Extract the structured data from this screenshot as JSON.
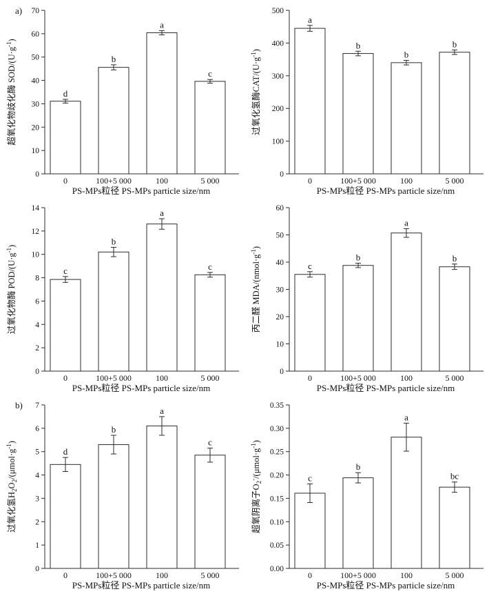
{
  "figure": {
    "background_color": "#ffffff",
    "axis_color": "#2a2a2a",
    "bar_fill": "#ffffff",
    "bar_stroke": "#2a2a2a",
    "panel_labels": {
      "a": "a)",
      "b": "b)"
    },
    "xlabel": "PS-MPs粒径 PS-MPs particle size/nm",
    "categories": [
      "0",
      "100+5 000",
      "100",
      "5 000"
    ]
  },
  "chart_data": [
    {
      "type": "bar",
      "panel": "a)",
      "title": "SOD",
      "ylabel": "超氧化物歧化酶 SOD/(U·g⁻¹)",
      "ylabel_rich": [
        {
          "t": "超氧化物歧化酶 SOD/(U·g"
        },
        {
          "t": "-1",
          "sup": true
        },
        {
          "t": ")"
        }
      ],
      "xlabel": "PS-MPs粒径 PS-MPs particle size/nm",
      "categories": [
        "0",
        "100+5 000",
        "100",
        "5 000"
      ],
      "values": [
        31.1,
        45.6,
        60.4,
        39.6
      ],
      "errors": [
        0.8,
        1.1,
        0.9,
        0.8
      ],
      "sig_letters": [
        "d",
        "b",
        "a",
        "c"
      ],
      "ylim": [
        0,
        70
      ],
      "ystep": 10,
      "ydecimals": 0
    },
    {
      "type": "bar",
      "panel": "",
      "title": "CAT",
      "ylabel": "过氧化氢酶CAT/(U·g⁻¹)",
      "ylabel_rich": [
        {
          "t": "过氧化氢酶CAT/(U·g"
        },
        {
          "t": "-1",
          "sup": true
        },
        {
          "t": ")"
        }
      ],
      "xlabel": "PS-MPs粒径 PS-MPs particle size/nm",
      "categories": [
        "0",
        "100+5 000",
        "100",
        "5 000"
      ],
      "values": [
        445,
        368,
        340,
        372
      ],
      "errors": [
        9,
        7,
        7,
        7
      ],
      "sig_letters": [
        "a",
        "b",
        "b",
        "b"
      ],
      "ylim": [
        0,
        500
      ],
      "ystep": 100,
      "ydecimals": 0
    },
    {
      "type": "bar",
      "panel": "",
      "title": "POD",
      "ylabel": "过氧化物酶 POD/(U·g⁻¹)",
      "ylabel_rich": [
        {
          "t": "过氧化物酶 POD/(U·g"
        },
        {
          "t": "-1",
          "sup": true
        },
        {
          "t": ")"
        }
      ],
      "xlabel": "PS-MPs粒径 PS-MPs particle size/nm",
      "categories": [
        "0",
        "100+5 000",
        "100",
        "5 000"
      ],
      "values": [
        7.85,
        10.2,
        12.6,
        8.25
      ],
      "errors": [
        0.25,
        0.4,
        0.45,
        0.2
      ],
      "sig_letters": [
        "c",
        "b",
        "a",
        "c"
      ],
      "ylim": [
        0,
        14
      ],
      "ystep": 2,
      "ydecimals": 0
    },
    {
      "type": "bar",
      "panel": "",
      "title": "MDA",
      "ylabel": "丙二醛 MDA/(nmol·g⁻¹)",
      "ylabel_rich": [
        {
          "t": "丙二醛 MDA/(nmol·g"
        },
        {
          "t": "-1",
          "sup": true
        },
        {
          "t": ")"
        }
      ],
      "xlabel": "PS-MPs粒径 PS-MPs particle size/nm",
      "categories": [
        "0",
        "100+5 000",
        "100",
        "5 000"
      ],
      "values": [
        35.5,
        38.8,
        50.7,
        38.3
      ],
      "errors": [
        1.0,
        0.8,
        1.6,
        1.0
      ],
      "sig_letters": [
        "c",
        "b",
        "a",
        "b"
      ],
      "ylim": [
        0,
        60
      ],
      "ystep": 10,
      "ydecimals": 0
    },
    {
      "type": "bar",
      "panel": "b)",
      "title": "H2O2",
      "ylabel": "过氧化氢H₂O₂/(μmol·g⁻¹)",
      "ylabel_rich": [
        {
          "t": "过氧化氢H"
        },
        {
          "t": "2",
          "sub": true
        },
        {
          "t": "O"
        },
        {
          "t": "2",
          "sub": true
        },
        {
          "t": "/(μmol·g"
        },
        {
          "t": "-1",
          "sup": true
        },
        {
          "t": ")"
        }
      ],
      "xlabel": "PS-MPs粒径 PS-MPs particle size/nm",
      "categories": [
        "0",
        "100+5 000",
        "100",
        "5 000"
      ],
      "values": [
        4.45,
        5.3,
        6.1,
        4.85
      ],
      "errors": [
        0.3,
        0.4,
        0.4,
        0.3
      ],
      "sig_letters": [
        "d",
        "b",
        "a",
        "c"
      ],
      "ylim": [
        0,
        7
      ],
      "ystep": 1,
      "ydecimals": 0
    },
    {
      "type": "bar",
      "panel": "",
      "title": "O2-",
      "ylabel": "超氧阴离子O₂⁻/(μmol·g⁻¹)",
      "ylabel_rich": [
        {
          "t": "超氧阴离子O"
        },
        {
          "t": "2",
          "sub": true
        },
        {
          "t": "-",
          "sup": true
        },
        {
          "t": "/(μmol·g"
        },
        {
          "t": "-1",
          "sup": true
        },
        {
          "t": ")"
        }
      ],
      "xlabel": "PS-MPs粒径 PS-MPs particle size/nm",
      "categories": [
        "0",
        "100+5 000",
        "100",
        "5 000"
      ],
      "values": [
        0.161,
        0.194,
        0.281,
        0.174
      ],
      "errors": [
        0.02,
        0.011,
        0.03,
        0.011
      ],
      "sig_letters": [
        "c",
        "b",
        "a",
        "bc"
      ],
      "ylim": [
        0,
        0.35
      ],
      "ystep": 0.05,
      "ydecimals": 2
    }
  ]
}
